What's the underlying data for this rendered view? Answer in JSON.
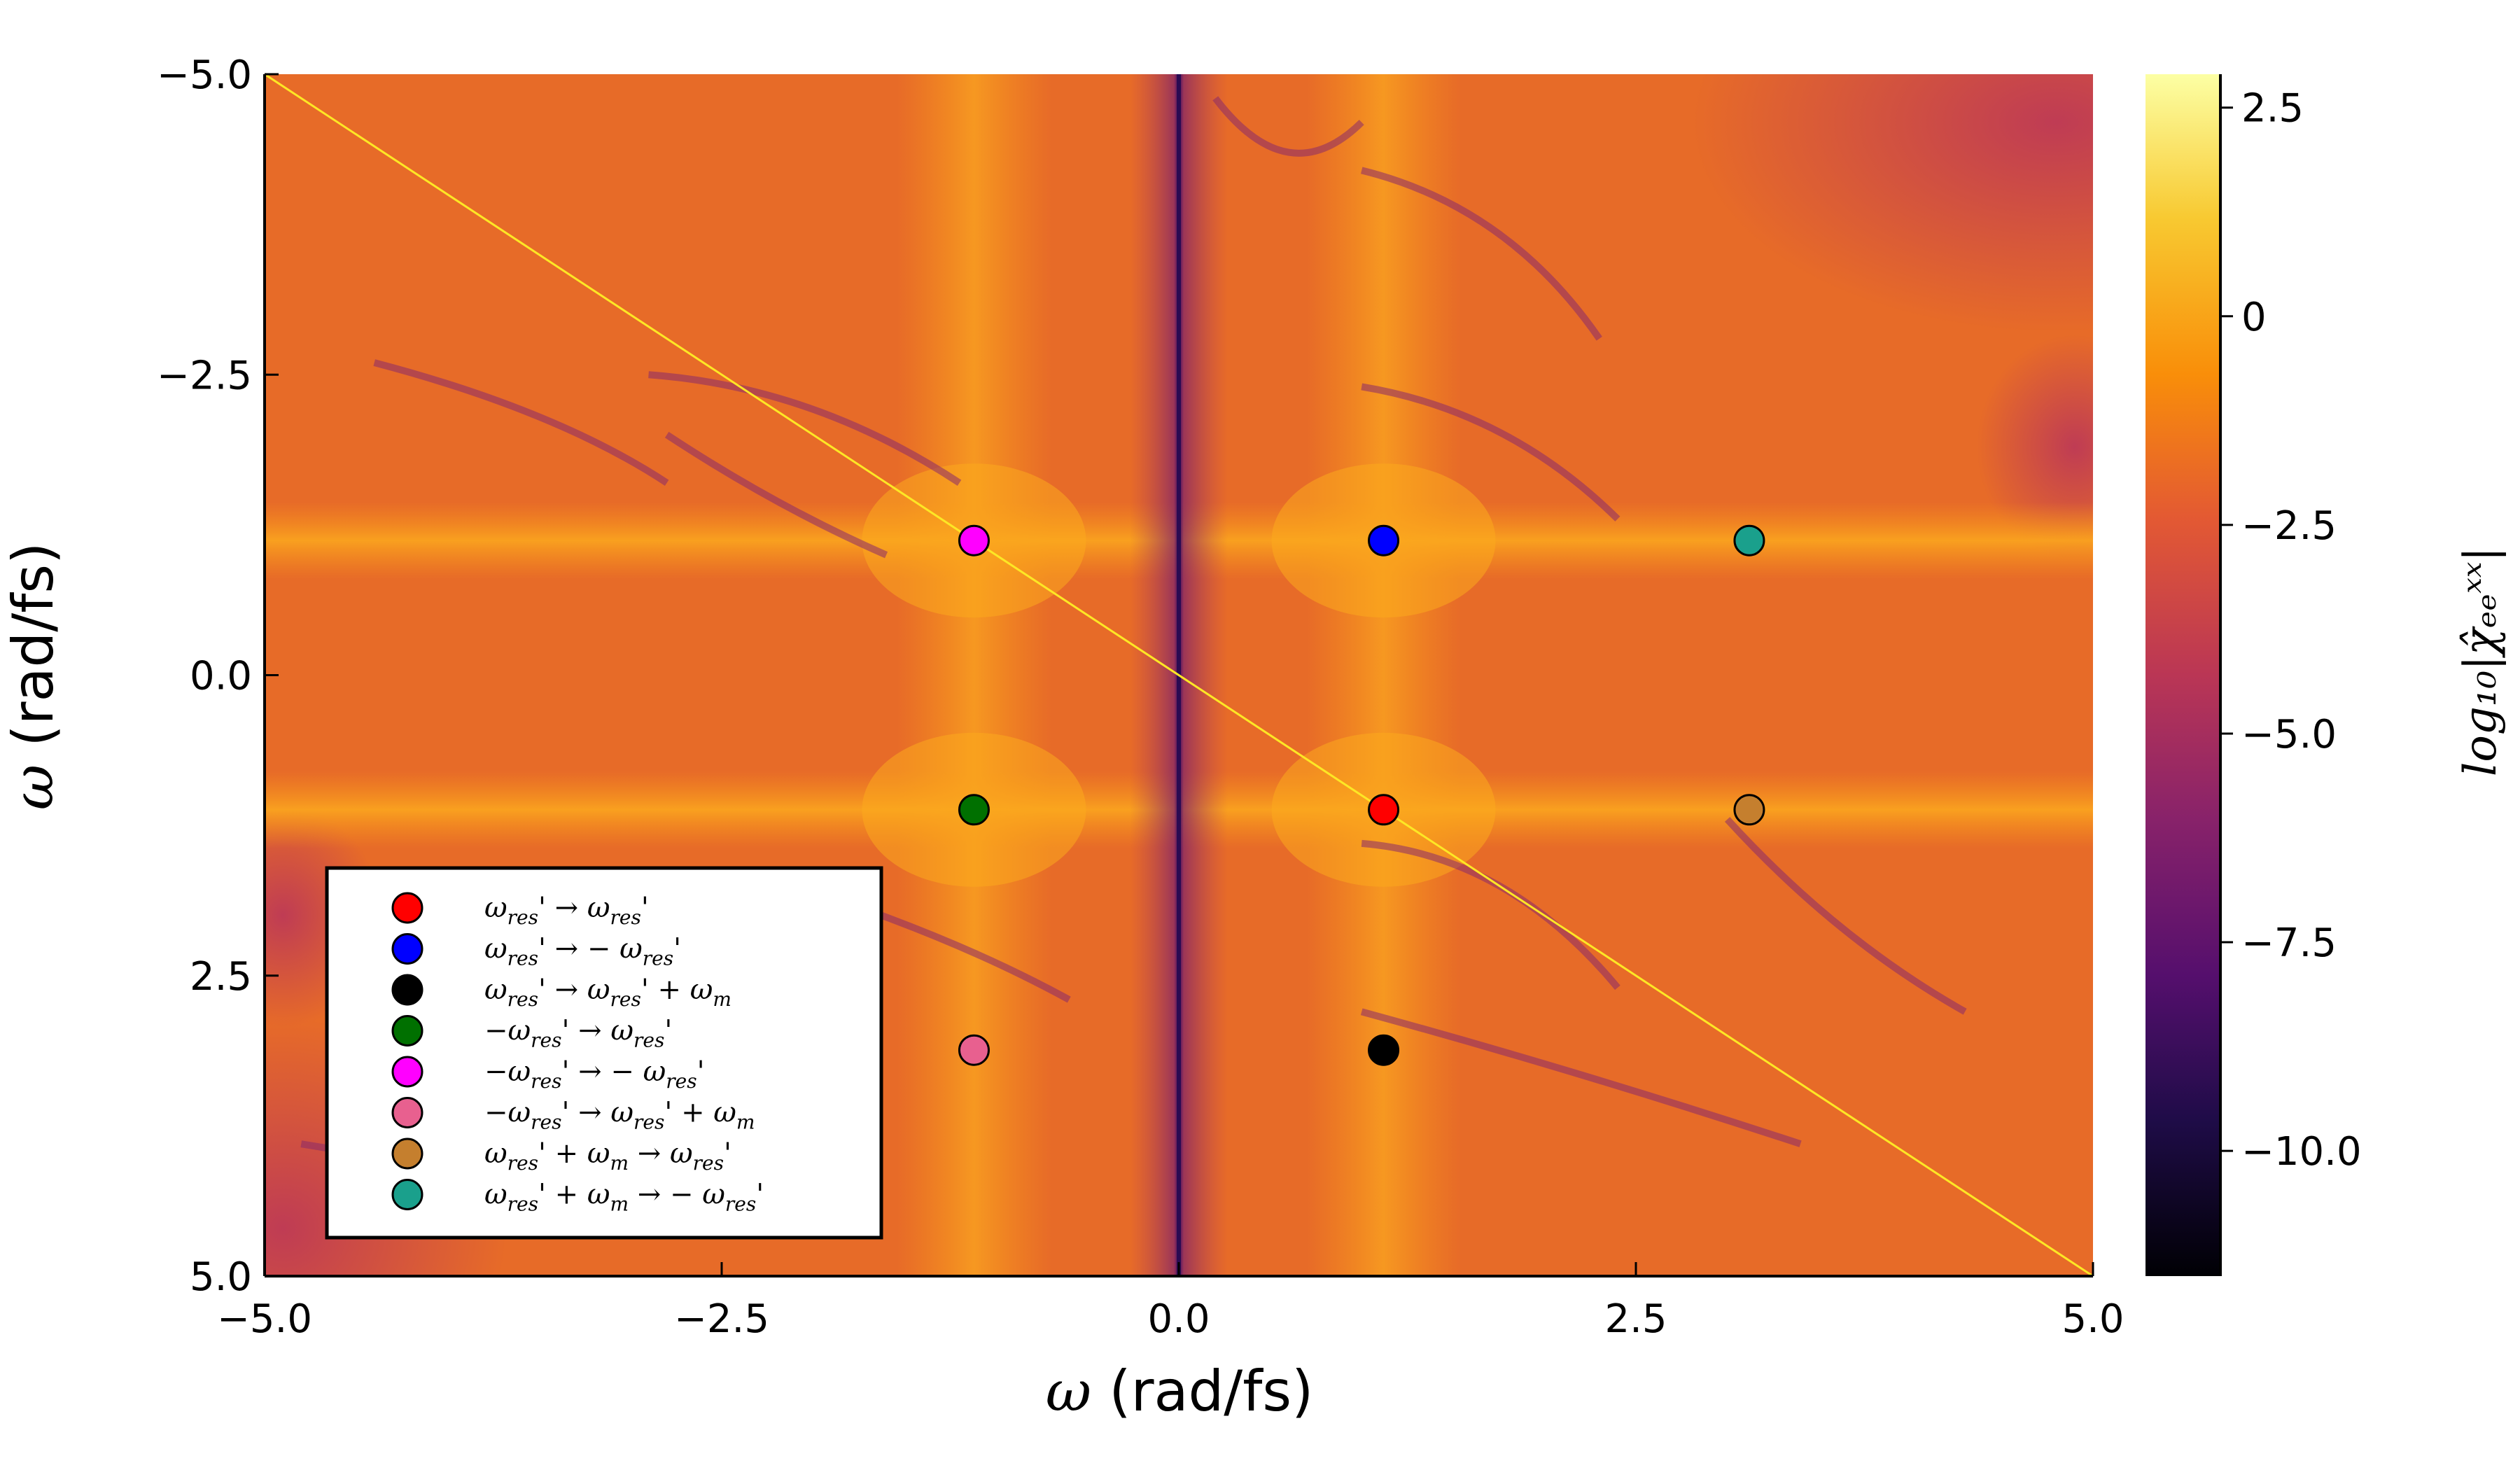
{
  "chart_data": {
    "type": "heatmap",
    "xlabel_symbol": "ω",
    "xlabel_unit": "(rad/fs)",
    "ylabel_symbol": "ω",
    "ylabel_unit": "(rad/fs)",
    "xlim": [
      -5.0,
      5.0
    ],
    "ylim": [
      -5.0,
      5.0
    ],
    "y_axis_inverted": true,
    "xticks": [
      -5.0,
      -2.5,
      0.0,
      2.5,
      5.0
    ],
    "xtick_labels": [
      "−5.0",
      "−2.5",
      "0.0",
      "2.5",
      "5.0"
    ],
    "yticks": [
      -5.0,
      -2.5,
      0.0,
      2.5,
      5.0
    ],
    "ytick_labels": [
      "−5.0",
      "−2.5",
      "0.0",
      "2.5",
      "5.0"
    ],
    "colorbar": {
      "label": "log₁₀|χ̂ₑₑˣˣ|",
      "colormap": "inferno",
      "range": [
        -11.5,
        2.9
      ],
      "ticks": [
        2.5,
        0,
        -2.5,
        -5.0,
        -7.5,
        -10.0
      ],
      "tick_labels": [
        "2.5",
        "0",
        "−2.5",
        "−5.0",
        "−7.5",
        "−10.0"
      ]
    },
    "heatmap_features": {
      "background_level": -2.0,
      "vertical_low_line_x": 0.0,
      "diagonal_line": "y = -x",
      "bright_rows_y": [
        -1.12,
        1.12
      ],
      "bright_columns_x": [
        -1.12,
        1.12
      ]
    },
    "series": [
      {
        "name": "ωres' → ωres'",
        "color": "#ff0000",
        "x": [
          1.12
        ],
        "y": [
          1.12
        ]
      },
      {
        "name": "ωres' → −ωres'",
        "color": "#0000ff",
        "x": [
          1.12
        ],
        "y": [
          -1.12
        ]
      },
      {
        "name": "ωres' → ωres' + ωm",
        "color": "#000000",
        "x": [
          1.12
        ],
        "y": [
          3.12
        ]
      },
      {
        "name": "−ωres' → ωres'",
        "color": "#007000",
        "x": [
          -1.12
        ],
        "y": [
          1.12
        ]
      },
      {
        "name": "−ωres' → −ωres'",
        "color": "#ff00ff",
        "x": [
          -1.12
        ],
        "y": [
          -1.12
        ]
      },
      {
        "name": "−ωres' → ωres' + ωm",
        "color": "#e8608f",
        "x": [
          -1.12
        ],
        "y": [
          3.12
        ]
      },
      {
        "name": "ωres' + ωm → ωres'",
        "color": "#c57f2e",
        "x": [
          3.12
        ],
        "y": [
          1.12
        ]
      },
      {
        "name": "ωres' + ωm → −ωres'",
        "color": "#1aa08c",
        "x": [
          3.12
        ],
        "y": [
          -1.12
        ]
      }
    ],
    "legend": {
      "position": "bottom-left",
      "entries": [
        {
          "base": "ω",
          "sub": "res",
          "rest": "' → ω",
          "sub2": "res",
          "tail": "'"
        },
        {
          "base": "ω",
          "sub": "res",
          "rest": "' → − ω",
          "sub2": "res",
          "tail": "'"
        },
        {
          "base": "ω",
          "sub": "res",
          "rest": "' → ω",
          "sub2": "res",
          "tail": "' + ω",
          "sub3": "m"
        },
        {
          "base": "−ω",
          "sub": "res",
          "rest": "' → ω",
          "sub2": "res",
          "tail": "'"
        },
        {
          "base": "−ω",
          "sub": "res",
          "rest": "' → − ω",
          "sub2": "res",
          "tail": "'"
        },
        {
          "base": "−ω",
          "sub": "res",
          "rest": "' → ω",
          "sub2": "res",
          "tail": "' + ω",
          "sub3": "m"
        },
        {
          "base": "ω",
          "sub": "res",
          "rest": "' + ω",
          "sub2": "m",
          "tail": " → ω",
          "sub3": "res",
          "tail2": "'"
        },
        {
          "base": "ω",
          "sub": "res",
          "rest": "' + ω",
          "sub2": "m",
          "tail": " → − ω",
          "sub3": "res",
          "tail2": "'"
        }
      ]
    }
  }
}
